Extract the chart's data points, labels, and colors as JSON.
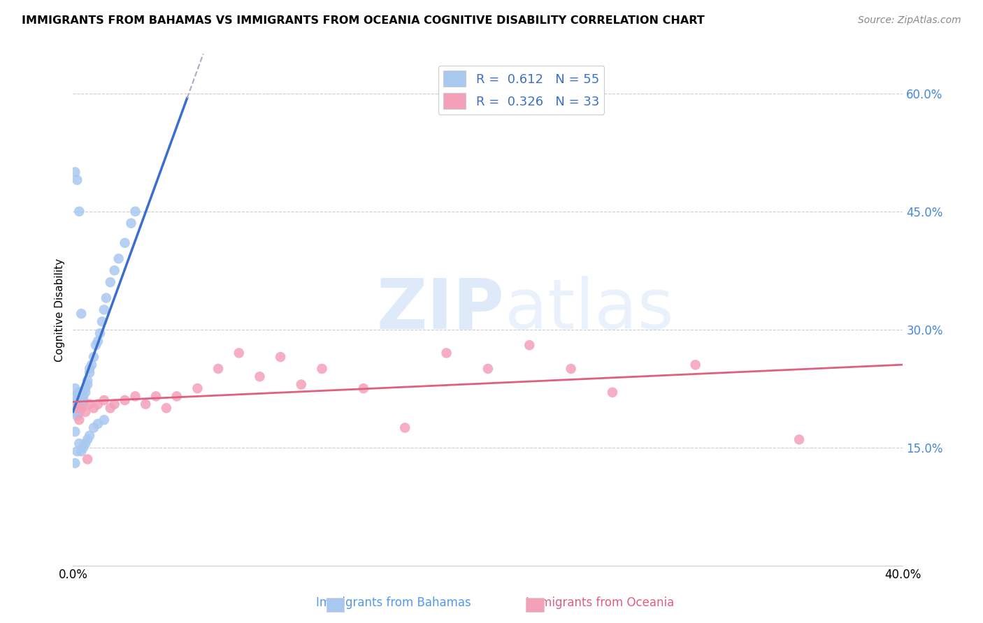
{
  "title": "IMMIGRANTS FROM BAHAMAS VS IMMIGRANTS FROM OCEANIA COGNITIVE DISABILITY CORRELATION CHART",
  "source": "Source: ZipAtlas.com",
  "ylabel": "Cognitive Disability",
  "xlim": [
    0.0,
    0.4
  ],
  "ylim": [
    0.0,
    0.65
  ],
  "y_ticks_right": [
    0.15,
    0.3,
    0.45,
    0.6
  ],
  "y_tick_labels_right": [
    "15.0%",
    "30.0%",
    "45.0%",
    "60.0%"
  ],
  "r_blue": 0.612,
  "n_blue": 55,
  "r_pink": 0.326,
  "n_pink": 33,
  "color_blue": "#a8c8f0",
  "color_blue_line": "#3a6fcd",
  "color_pink": "#f4a0b8",
  "color_pink_line": "#e06080",
  "watermark_zip": "ZIP",
  "watermark_atlas": "atlas",
  "blue_x": [
    0.001,
    0.001,
    0.001,
    0.001,
    0.002,
    0.002,
    0.002,
    0.002,
    0.002,
    0.003,
    0.003,
    0.003,
    0.003,
    0.004,
    0.004,
    0.004,
    0.005,
    0.005,
    0.005,
    0.006,
    0.006,
    0.007,
    0.007,
    0.008,
    0.008,
    0.009,
    0.01,
    0.011,
    0.012,
    0.013,
    0.014,
    0.015,
    0.016,
    0.018,
    0.02,
    0.022,
    0.025,
    0.028,
    0.03,
    0.001,
    0.001,
    0.002,
    0.003,
    0.004,
    0.005,
    0.006,
    0.007,
    0.008,
    0.01,
    0.012,
    0.015,
    0.001,
    0.002,
    0.003,
    0.004
  ],
  "blue_y": [
    0.205,
    0.215,
    0.225,
    0.195,
    0.2,
    0.21,
    0.215,
    0.19,
    0.205,
    0.195,
    0.205,
    0.215,
    0.22,
    0.2,
    0.21,
    0.215,
    0.205,
    0.21,
    0.215,
    0.225,
    0.22,
    0.235,
    0.23,
    0.25,
    0.245,
    0.255,
    0.265,
    0.28,
    0.285,
    0.295,
    0.31,
    0.325,
    0.34,
    0.36,
    0.375,
    0.39,
    0.41,
    0.435,
    0.45,
    0.17,
    0.13,
    0.145,
    0.155,
    0.145,
    0.15,
    0.155,
    0.16,
    0.165,
    0.175,
    0.18,
    0.185,
    0.5,
    0.49,
    0.45,
    0.32
  ],
  "pink_x": [
    0.002,
    0.004,
    0.006,
    0.008,
    0.01,
    0.012,
    0.015,
    0.018,
    0.02,
    0.025,
    0.03,
    0.035,
    0.04,
    0.045,
    0.05,
    0.06,
    0.07,
    0.08,
    0.09,
    0.1,
    0.11,
    0.12,
    0.14,
    0.16,
    0.18,
    0.2,
    0.22,
    0.24,
    0.26,
    0.3,
    0.35,
    0.003,
    0.007
  ],
  "pink_y": [
    0.2,
    0.2,
    0.195,
    0.205,
    0.2,
    0.205,
    0.21,
    0.2,
    0.205,
    0.21,
    0.215,
    0.205,
    0.215,
    0.2,
    0.215,
    0.225,
    0.25,
    0.27,
    0.24,
    0.265,
    0.23,
    0.25,
    0.225,
    0.175,
    0.27,
    0.25,
    0.28,
    0.25,
    0.22,
    0.255,
    0.16,
    0.185,
    0.135
  ]
}
